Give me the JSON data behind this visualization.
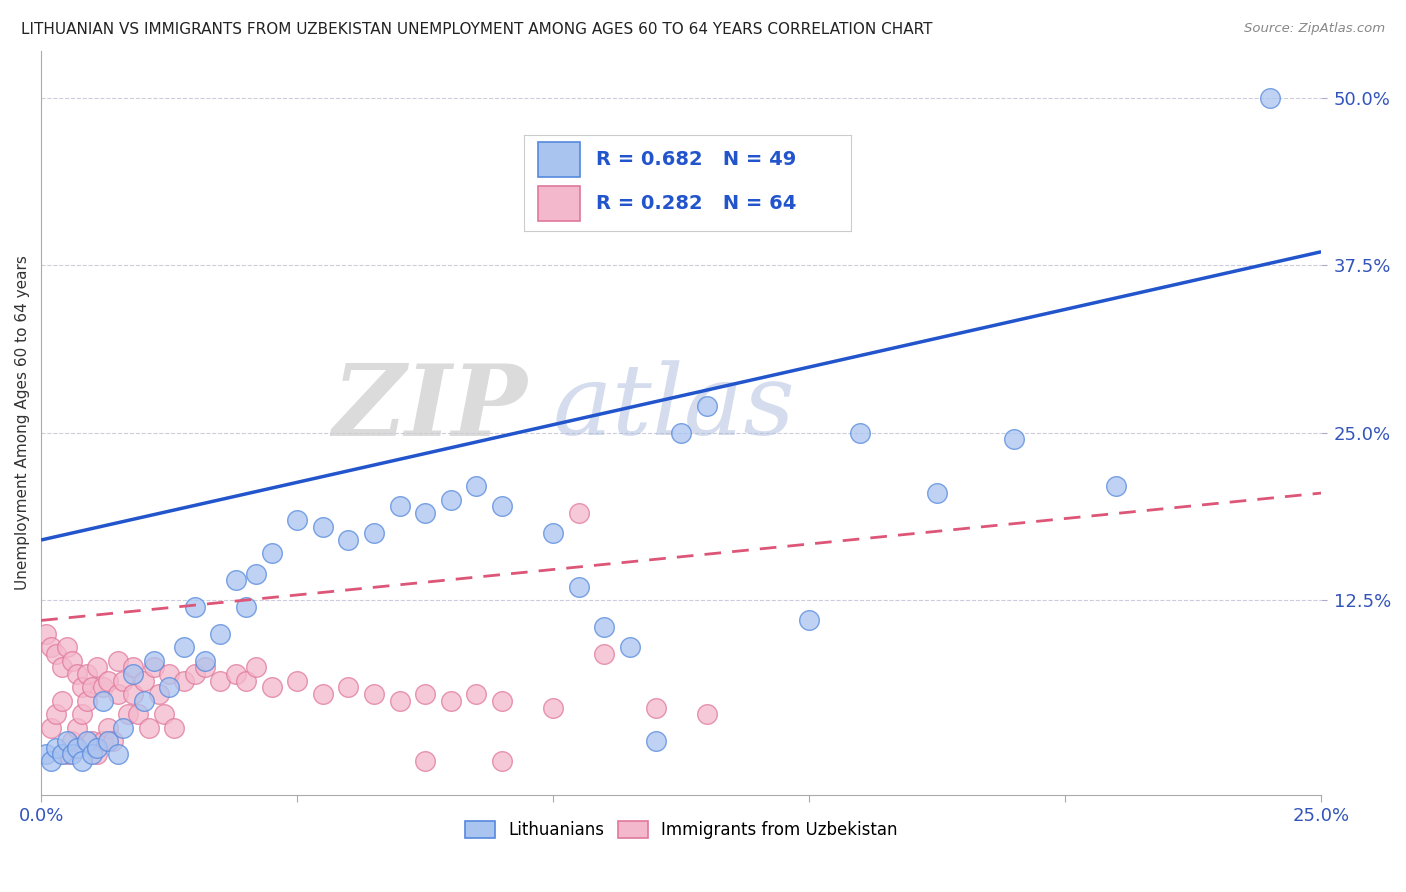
{
  "title": "LITHUANIAN VS IMMIGRANTS FROM UZBEKISTAN UNEMPLOYMENT AMONG AGES 60 TO 64 YEARS CORRELATION CHART",
  "source": "Source: ZipAtlas.com",
  "ylabel": "Unemployment Among Ages 60 to 64 years",
  "xlim": [
    0.0,
    0.25
  ],
  "ylim": [
    -0.02,
    0.535
  ],
  "ytick_labels_right": [
    "12.5%",
    "25.0%",
    "37.5%",
    "50.0%"
  ],
  "ytick_vals_right": [
    0.125,
    0.25,
    0.375,
    0.5
  ],
  "watermark_zip": "ZIP",
  "watermark_atlas": "atlas",
  "blue_color": "#aac4f0",
  "blue_edge_color": "#5588dd",
  "pink_color": "#f4b8cc",
  "pink_edge_color": "#e0789a",
  "blue_line_color": "#2255cc",
  "pink_line_color": "#dd5577",
  "legend_R_blue": "0.682",
  "legend_N_blue": "49",
  "legend_R_pink": "0.282",
  "legend_N_pink": "64",
  "blue_line_x0": 0.0,
  "blue_line_y0": 0.17,
  "blue_line_x1": 0.25,
  "blue_line_y1": 0.385,
  "pink_line_x0": 0.0,
  "pink_line_y0": 0.11,
  "pink_line_x1": 0.25,
  "pink_line_y1": 0.205,
  "blue_scatter_x": [
    0.001,
    0.002,
    0.003,
    0.004,
    0.005,
    0.006,
    0.007,
    0.008,
    0.009,
    0.01,
    0.011,
    0.012,
    0.013,
    0.015,
    0.016,
    0.018,
    0.02,
    0.022,
    0.025,
    0.028,
    0.03,
    0.032,
    0.035,
    0.038,
    0.04,
    0.042,
    0.045,
    0.05,
    0.055,
    0.06,
    0.065,
    0.07,
    0.075,
    0.08,
    0.085,
    0.09,
    0.1,
    0.105,
    0.11,
    0.115,
    0.12,
    0.125,
    0.13,
    0.15,
    0.16,
    0.175,
    0.19,
    0.21,
    0.24
  ],
  "blue_scatter_y": [
    0.01,
    0.005,
    0.015,
    0.01,
    0.02,
    0.01,
    0.015,
    0.005,
    0.02,
    0.01,
    0.015,
    0.05,
    0.02,
    0.01,
    0.03,
    0.07,
    0.05,
    0.08,
    0.06,
    0.09,
    0.12,
    0.08,
    0.1,
    0.14,
    0.12,
    0.145,
    0.16,
    0.185,
    0.18,
    0.17,
    0.175,
    0.195,
    0.19,
    0.2,
    0.21,
    0.195,
    0.175,
    0.135,
    0.105,
    0.09,
    0.02,
    0.25,
    0.27,
    0.11,
    0.25,
    0.205,
    0.245,
    0.21,
    0.5
  ],
  "pink_scatter_x": [
    0.001,
    0.002,
    0.002,
    0.003,
    0.003,
    0.004,
    0.004,
    0.005,
    0.005,
    0.006,
    0.006,
    0.007,
    0.007,
    0.008,
    0.008,
    0.009,
    0.009,
    0.01,
    0.01,
    0.011,
    0.011,
    0.012,
    0.012,
    0.013,
    0.013,
    0.014,
    0.015,
    0.015,
    0.016,
    0.017,
    0.018,
    0.018,
    0.019,
    0.02,
    0.021,
    0.022,
    0.023,
    0.024,
    0.025,
    0.026,
    0.028,
    0.03,
    0.032,
    0.035,
    0.038,
    0.04,
    0.042,
    0.045,
    0.05,
    0.055,
    0.06,
    0.065,
    0.07,
    0.075,
    0.08,
    0.085,
    0.09,
    0.1,
    0.105,
    0.11,
    0.12,
    0.13,
    0.075,
    0.09
  ],
  "pink_scatter_y": [
    0.1,
    0.03,
    0.09,
    0.04,
    0.085,
    0.05,
    0.075,
    0.01,
    0.09,
    0.02,
    0.08,
    0.03,
    0.07,
    0.04,
    0.06,
    0.05,
    0.07,
    0.02,
    0.06,
    0.01,
    0.075,
    0.02,
    0.06,
    0.03,
    0.065,
    0.02,
    0.055,
    0.08,
    0.065,
    0.04,
    0.055,
    0.075,
    0.04,
    0.065,
    0.03,
    0.075,
    0.055,
    0.04,
    0.07,
    0.03,
    0.065,
    0.07,
    0.075,
    0.065,
    0.07,
    0.065,
    0.075,
    0.06,
    0.065,
    0.055,
    0.06,
    0.055,
    0.05,
    0.055,
    0.05,
    0.055,
    0.05,
    0.045,
    0.19,
    0.085,
    0.045,
    0.04,
    0.005,
    0.005
  ]
}
